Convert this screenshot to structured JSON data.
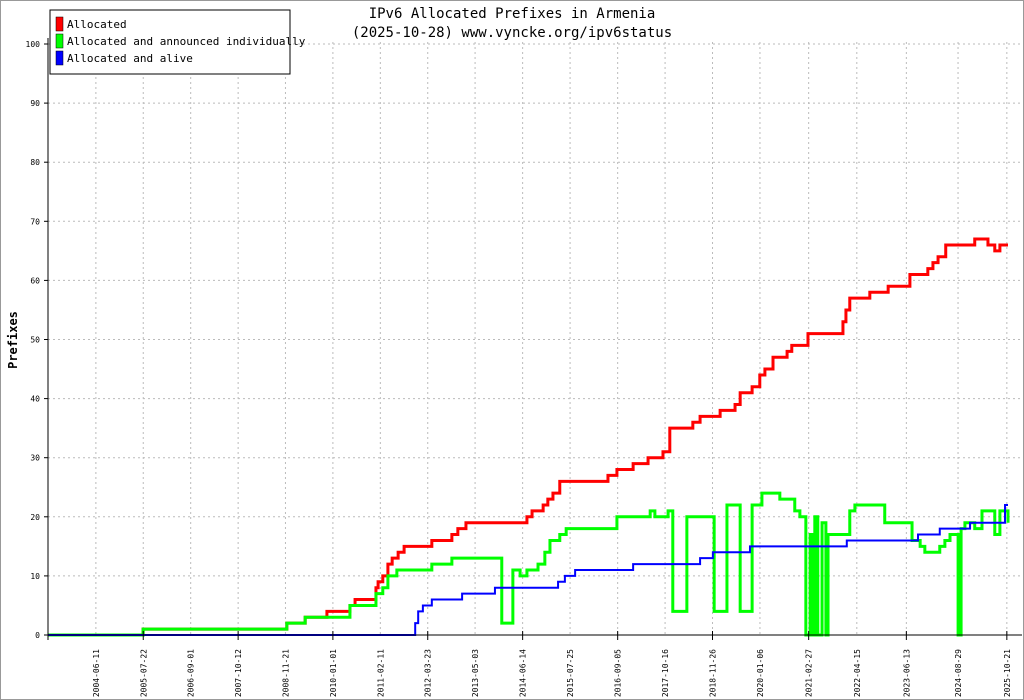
{
  "chart_data": {
    "type": "line",
    "title": "IPv6 Allocated Prefixes in Armenia",
    "subtitle": "(2025-10-28) www.vyncke.org/ipv6status",
    "xlabel": "",
    "ylabel": "Prefixes",
    "xlim": [
      2003.32,
      2025.83
    ],
    "ylim": [
      0,
      100
    ],
    "yticks": [
      0,
      10,
      20,
      30,
      40,
      50,
      60,
      70,
      80,
      90,
      100
    ],
    "xtick_labels": [
      "2004-06-11",
      "2005-07-22",
      "2006-09-01",
      "2007-10-12",
      "2008-11-21",
      "2010-01-01",
      "2011-02-11",
      "2012-03-23",
      "2013-05-03",
      "2014-06-14",
      "2015-07-25",
      "2016-09-05",
      "2017-10-16",
      "2018-11-26",
      "2020-01-06",
      "2021-02-27",
      "2022-04-15",
      "2023-06-13",
      "2024-08-29",
      "2025-10-21"
    ],
    "grid": true,
    "legend_position": "top-left",
    "series": [
      {
        "name": "Allocated",
        "color": "#ff0000",
        "step": true,
        "points": [
          [
            2003.32,
            0
          ],
          [
            2005.55,
            1
          ],
          [
            2008.92,
            2
          ],
          [
            2009.35,
            3
          ],
          [
            2009.86,
            4
          ],
          [
            2010.4,
            5
          ],
          [
            2010.52,
            6
          ],
          [
            2011.01,
            8
          ],
          [
            2011.06,
            9
          ],
          [
            2011.17,
            10
          ],
          [
            2011.29,
            12
          ],
          [
            2011.39,
            13
          ],
          [
            2011.53,
            14
          ],
          [
            2011.67,
            15
          ],
          [
            2012.32,
            16
          ],
          [
            2012.79,
            17
          ],
          [
            2012.93,
            18
          ],
          [
            2013.12,
            19
          ],
          [
            2014.55,
            20
          ],
          [
            2014.67,
            21
          ],
          [
            2014.93,
            22
          ],
          [
            2015.04,
            23
          ],
          [
            2015.16,
            24
          ],
          [
            2015.32,
            26
          ],
          [
            2016.45,
            27
          ],
          [
            2016.66,
            28
          ],
          [
            2017.04,
            29
          ],
          [
            2017.39,
            30
          ],
          [
            2017.74,
            31
          ],
          [
            2017.9,
            35
          ],
          [
            2018.44,
            36
          ],
          [
            2018.61,
            37
          ],
          [
            2019.08,
            38
          ],
          [
            2019.43,
            39
          ],
          [
            2019.55,
            41
          ],
          [
            2019.83,
            42
          ],
          [
            2020.01,
            44
          ],
          [
            2020.13,
            45
          ],
          [
            2020.32,
            47
          ],
          [
            2020.65,
            48
          ],
          [
            2020.76,
            49
          ],
          [
            2021.14,
            51
          ],
          [
            2021.96,
            53
          ],
          [
            2022.03,
            55
          ],
          [
            2022.12,
            57
          ],
          [
            2022.59,
            58
          ],
          [
            2023.02,
            59
          ],
          [
            2023.53,
            61
          ],
          [
            2023.95,
            62
          ],
          [
            2024.07,
            63
          ],
          [
            2024.19,
            64
          ],
          [
            2024.37,
            66
          ],
          [
            2025.05,
            67
          ],
          [
            2025.36,
            66
          ],
          [
            2025.52,
            65
          ],
          [
            2025.64,
            66
          ],
          [
            2025.83,
            66
          ]
        ]
      },
      {
        "name": "Allocated and announced individually",
        "color": "#00ff00",
        "step": true,
        "points": [
          [
            2003.32,
            0
          ],
          [
            2005.55,
            1
          ],
          [
            2008.92,
            2
          ],
          [
            2009.35,
            3
          ],
          [
            2010.4,
            5
          ],
          [
            2011.01,
            7
          ],
          [
            2011.17,
            8
          ],
          [
            2011.29,
            10
          ],
          [
            2011.5,
            11
          ],
          [
            2012.32,
            12
          ],
          [
            2012.79,
            13
          ],
          [
            2013.96,
            2
          ],
          [
            2014.22,
            11
          ],
          [
            2014.39,
            10
          ],
          [
            2014.55,
            11
          ],
          [
            2014.81,
            12
          ],
          [
            2014.97,
            14
          ],
          [
            2015.09,
            16
          ],
          [
            2015.32,
            17
          ],
          [
            2015.47,
            18
          ],
          [
            2016.5,
            18
          ],
          [
            2016.66,
            20
          ],
          [
            2017.44,
            21
          ],
          [
            2017.55,
            20
          ],
          [
            2017.86,
            21
          ],
          [
            2017.97,
            4
          ],
          [
            2018.26,
            4
          ],
          [
            2018.3,
            20
          ],
          [
            2018.89,
            20
          ],
          [
            2018.94,
            4
          ],
          [
            2019.22,
            4
          ],
          [
            2019.24,
            22
          ],
          [
            2019.5,
            22
          ],
          [
            2019.55,
            4
          ],
          [
            2019.8,
            4
          ],
          [
            2019.83,
            22
          ],
          [
            2020.01,
            22
          ],
          [
            2020.06,
            24
          ],
          [
            2020.37,
            24
          ],
          [
            2020.48,
            23
          ],
          [
            2020.72,
            23
          ],
          [
            2020.83,
            21
          ],
          [
            2020.95,
            20
          ],
          [
            2021.09,
            0
          ],
          [
            2021.19,
            17
          ],
          [
            2021.23,
            0
          ],
          [
            2021.3,
            20
          ],
          [
            2021.37,
            0
          ],
          [
            2021.47,
            19
          ],
          [
            2021.56,
            0
          ],
          [
            2021.61,
            17
          ],
          [
            2022.01,
            17
          ],
          [
            2022.12,
            21
          ],
          [
            2022.24,
            22
          ],
          [
            2022.83,
            22
          ],
          [
            2022.94,
            19
          ],
          [
            2023.41,
            19
          ],
          [
            2023.58,
            16
          ],
          [
            2023.77,
            15
          ],
          [
            2023.88,
            14
          ],
          [
            2024.23,
            15
          ],
          [
            2024.35,
            16
          ],
          [
            2024.47,
            17
          ],
          [
            2024.66,
            0
          ],
          [
            2024.73,
            18
          ],
          [
            2024.82,
            19
          ],
          [
            2025.05,
            18
          ],
          [
            2025.22,
            21
          ],
          [
            2025.48,
            21
          ],
          [
            2025.52,
            17
          ],
          [
            2025.64,
            21
          ],
          [
            2025.83,
            19
          ]
        ]
      },
      {
        "name": "Allocated and alive",
        "color": "#0000ff",
        "step": true,
        "points": [
          [
            2003.32,
            0
          ],
          [
            2011.85,
            0
          ],
          [
            2011.93,
            2
          ],
          [
            2012.0,
            4
          ],
          [
            2012.11,
            5
          ],
          [
            2012.32,
            6
          ],
          [
            2013.03,
            7
          ],
          [
            2013.8,
            8
          ],
          [
            2015.28,
            9
          ],
          [
            2015.44,
            10
          ],
          [
            2015.68,
            11
          ],
          [
            2017.04,
            12
          ],
          [
            2018.61,
            13
          ],
          [
            2018.91,
            14
          ],
          [
            2019.78,
            15
          ],
          [
            2022.05,
            16
          ],
          [
            2023.72,
            17
          ],
          [
            2024.23,
            18
          ],
          [
            2024.94,
            19
          ],
          [
            2025.76,
            22
          ],
          [
            2025.83,
            22
          ]
        ]
      }
    ]
  }
}
